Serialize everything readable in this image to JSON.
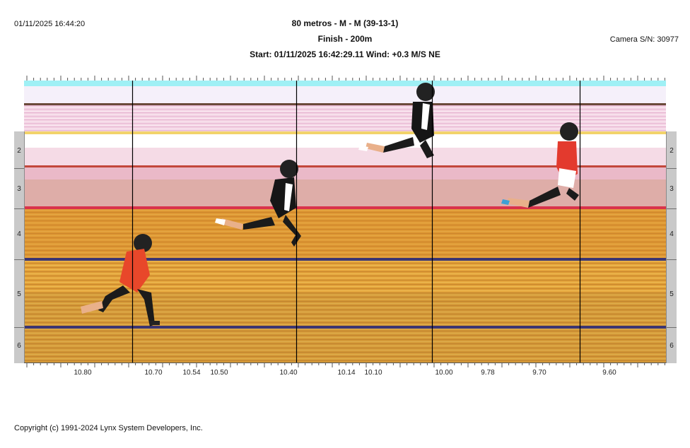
{
  "header": {
    "timestamp": "01/11/2025 16:44:20",
    "event_title": "80 metros - M - M (39-13-1)",
    "finish_label": "Finish - 200m",
    "start_line": "Start: 01/11/2025 16:42:29.11    Wind: +0.3 M/S NE",
    "camera": "Camera S/N: 30977"
  },
  "footer": {
    "copyright": "Copyright (c) 1991-2024 Lynx System Developers, Inc."
  },
  "lanes": [
    "2",
    "3",
    "4",
    "5",
    "6"
  ],
  "time_axis": {
    "labels": [
      "10.80",
      "10.70",
      "10.54",
      "10.50",
      "10.40",
      "10.14",
      "10.10",
      "10.00",
      "9.78",
      "9.70",
      "9.60"
    ]
  },
  "finish_markers": {
    "description_hidden": "",
    "times": [
      "10.70",
      "10.40",
      "10.00",
      "9.70"
    ]
  },
  "colors": {
    "track_orange": "#e6a63a",
    "track_pink": "#f2cfe0",
    "lane_line": "#3b3572",
    "sky": "#9ff0f5",
    "marker_line": "#000000"
  },
  "athletes": [
    {
      "icon": "runner-red-jersey-icon"
    },
    {
      "icon": "runner-black-jersey-icon"
    },
    {
      "icon": "runner-black-jersey-icon"
    },
    {
      "icon": "runner-red-jersey-icon"
    }
  ]
}
